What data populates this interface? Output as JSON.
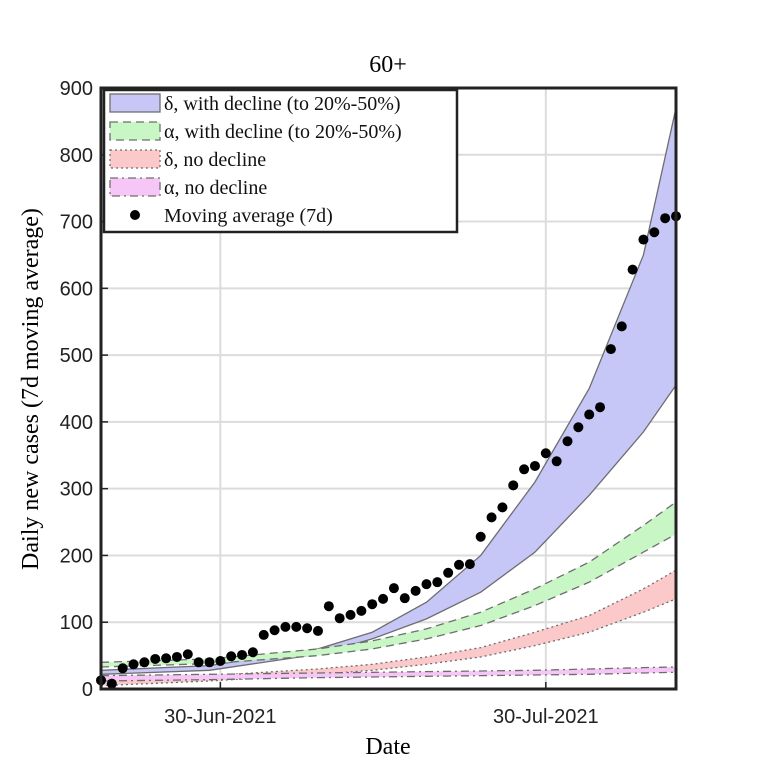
{
  "chart_data": {
    "type": "area",
    "title": "60+",
    "xlabel": "Date",
    "ylabel": "Daily new cases (7d moving average)",
    "xlim": [
      "2021-06-19",
      "2021-08-11"
    ],
    "xticks": [
      {
        "value": "2021-06-30",
        "label": "30-Jun-2021"
      },
      {
        "value": "2021-07-30",
        "label": "30-Jul-2021"
      }
    ],
    "ylim": [
      0,
      900
    ],
    "yticks": [
      0,
      100,
      200,
      300,
      400,
      500,
      600,
      700,
      800,
      900
    ],
    "grid": true,
    "legend": "upper left",
    "band_x": [
      "2021-06-19",
      "2021-06-29",
      "2021-07-09",
      "2021-07-14",
      "2021-07-19",
      "2021-07-24",
      "2021-07-29",
      "2021-08-03",
      "2021-08-08",
      "2021-08-11"
    ],
    "x": [
      "2021-06-19",
      "2021-06-20",
      "2021-06-21",
      "2021-06-22",
      "2021-06-23",
      "2021-06-24",
      "2021-06-25",
      "2021-06-26",
      "2021-06-27",
      "2021-06-28",
      "2021-06-29",
      "2021-06-30",
      "2021-07-01",
      "2021-07-02",
      "2021-07-03",
      "2021-07-04",
      "2021-07-05",
      "2021-07-06",
      "2021-07-07",
      "2021-07-08",
      "2021-07-09",
      "2021-07-10",
      "2021-07-11",
      "2021-07-12",
      "2021-07-13",
      "2021-07-14",
      "2021-07-15",
      "2021-07-16",
      "2021-07-17",
      "2021-07-18",
      "2021-07-19",
      "2021-07-20",
      "2021-07-21",
      "2021-07-22",
      "2021-07-23",
      "2021-07-24",
      "2021-07-25",
      "2021-07-26",
      "2021-07-27",
      "2021-07-28",
      "2021-07-29",
      "2021-07-30",
      "2021-07-31",
      "2021-08-01",
      "2021-08-02",
      "2021-08-03",
      "2021-08-04",
      "2021-08-05",
      "2021-08-06",
      "2021-08-07",
      "2021-08-08",
      "2021-08-09",
      "2021-08-10",
      "2021-08-11"
    ],
    "series": [
      {
        "name": "δ, with decline (to 20%-50%)",
        "type": "band",
        "color": "#c6c6f7",
        "line_style": "solid",
        "upper": [
          28,
          35,
          60,
          85,
          130,
          200,
          310,
          450,
          650,
          870
        ],
        "lower": [
          22,
          28,
          52,
          75,
          105,
          145,
          205,
          290,
          385,
          455
        ]
      },
      {
        "name": "α, with decline (to 20%-50%)",
        "type": "band",
        "color": "#c9f6c5",
        "line_style": "dashed",
        "upper": [
          40,
          45,
          60,
          72,
          90,
          115,
          150,
          190,
          245,
          280
        ],
        "lower": [
          33,
          38,
          50,
          60,
          75,
          95,
          125,
          160,
          205,
          232
        ]
      },
      {
        "name": "δ, no decline",
        "type": "band",
        "color": "#fbc9c9",
        "line_style": "dotted",
        "upper": [
          15,
          20,
          30,
          37,
          48,
          62,
          85,
          110,
          150,
          178
        ],
        "lower": [
          5,
          12,
          22,
          28,
          37,
          48,
          65,
          85,
          115,
          135
        ]
      },
      {
        "name": "α, no decline",
        "type": "band",
        "color": "#f6c6f6",
        "line_style": "dashdot",
        "upper": [
          20,
          22,
          24,
          25,
          26,
          27,
          28,
          30,
          32,
          33
        ],
        "lower": [
          12,
          14,
          17,
          18,
          19,
          20,
          21,
          22,
          24,
          25
        ]
      },
      {
        "name": "Moving average (7d)",
        "type": "scatter",
        "color": "#000000",
        "values": [
          13,
          8,
          31,
          37,
          40,
          45,
          46,
          48,
          52,
          40,
          40,
          42,
          49,
          51,
          55,
          81,
          88,
          93,
          93,
          91,
          87,
          124,
          106,
          111,
          117,
          127,
          135,
          151,
          136,
          147,
          157,
          160,
          174,
          186,
          187,
          228,
          257,
          272,
          305,
          329,
          334,
          353,
          341,
          371,
          392,
          411,
          422,
          509,
          543,
          628,
          673,
          684,
          705,
          708
        ]
      }
    ]
  }
}
